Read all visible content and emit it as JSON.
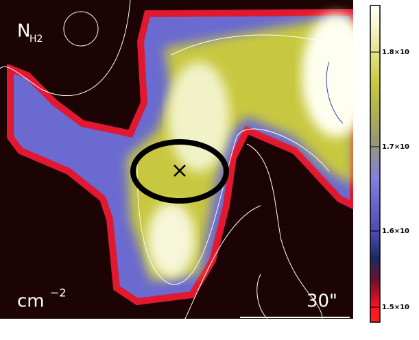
{
  "image": {
    "label_main": "N",
    "label_sub": "H2",
    "unit_base": "cm",
    "unit_exp": "−2",
    "scale_label": "30\""
  },
  "colorbar": {
    "labels": [
      "1.8×10",
      "1.7×10",
      "1.6×10",
      "1.5×10"
    ]
  }
}
